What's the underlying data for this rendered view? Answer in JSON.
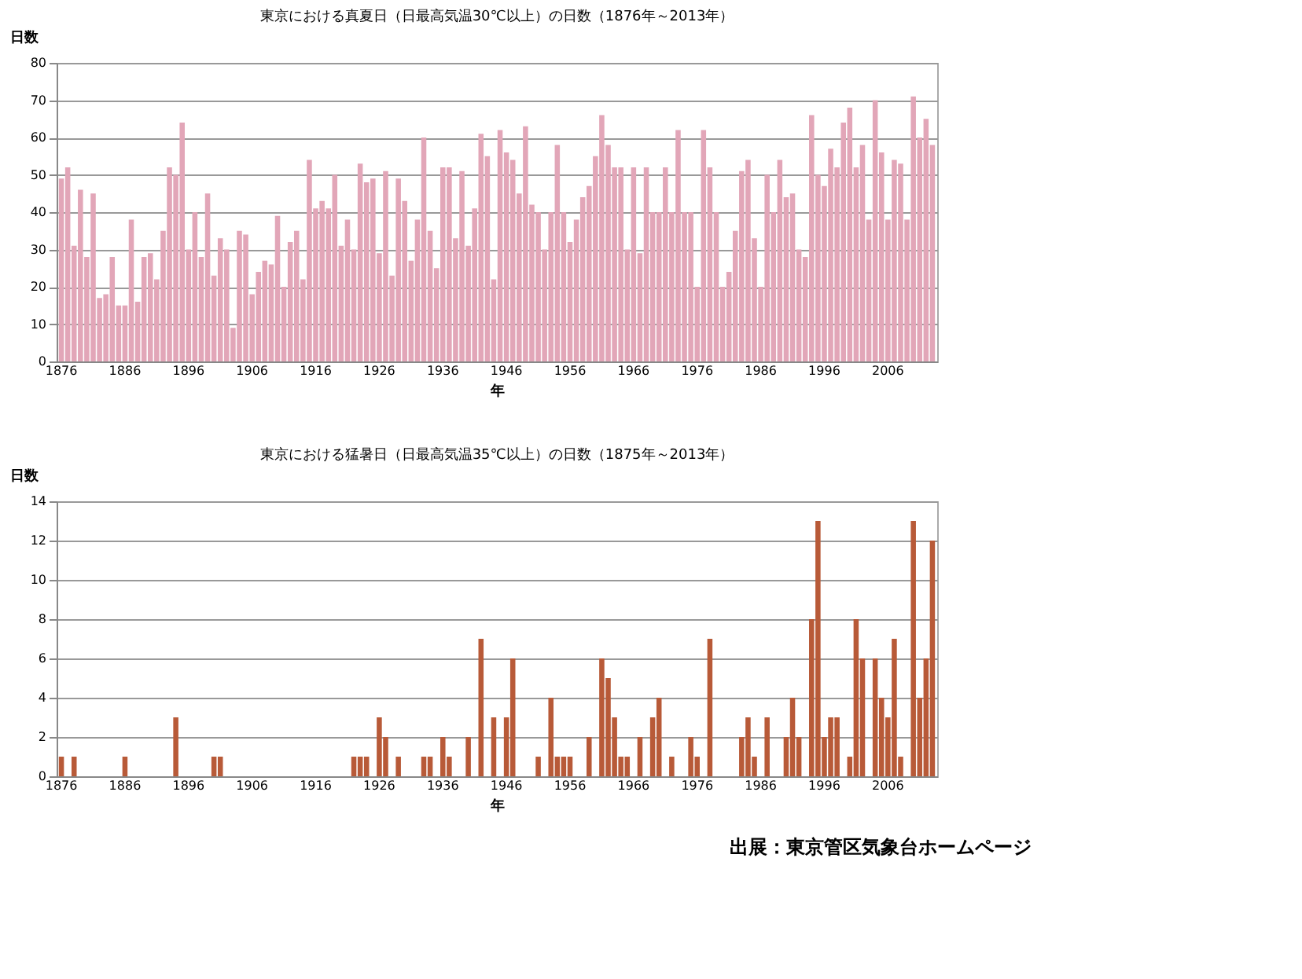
{
  "chart_data": [
    {
      "type": "bar",
      "title": "東京における真夏日（日最高気温30℃以上）の日数（1876年～2013年）",
      "ylabel": "日数",
      "xlabel": "年",
      "categories": [
        "1876",
        null,
        null,
        null,
        null,
        null,
        null,
        null,
        null,
        null,
        "1886",
        null,
        null,
        null,
        null,
        null,
        null,
        null,
        null,
        null,
        "1896",
        null,
        null,
        null,
        null,
        null,
        null,
        null,
        null,
        null,
        "1906",
        null,
        null,
        null,
        null,
        null,
        null,
        null,
        null,
        null,
        "1916",
        null,
        null,
        null,
        null,
        null,
        null,
        null,
        null,
        null,
        "1926",
        null,
        null,
        null,
        null,
        null,
        null,
        null,
        null,
        null,
        "1936",
        null,
        null,
        null,
        null,
        null,
        null,
        null,
        null,
        null,
        "1946",
        null,
        null,
        null,
        null,
        null,
        null,
        null,
        null,
        null,
        "1956",
        null,
        null,
        null,
        null,
        null,
        null,
        null,
        null,
        null,
        "1966",
        null,
        null,
        null,
        null,
        null,
        null,
        null,
        null,
        null,
        "1976",
        null,
        null,
        null,
        null,
        null,
        null,
        null,
        null,
        null,
        "1986",
        null,
        null,
        null,
        null,
        null,
        null,
        null,
        null,
        null,
        "1996",
        null,
        null,
        null,
        null,
        null,
        null,
        null,
        null,
        null,
        "2006",
        null,
        null,
        null,
        null,
        null,
        null,
        null
      ],
      "series": [
        {
          "color": "#e2a6b8",
          "values": [
            49,
            52,
            31,
            46,
            28,
            45,
            17,
            18,
            28,
            15,
            15,
            38,
            16,
            28,
            29,
            22,
            35,
            52,
            50,
            64,
            30,
            40,
            28,
            45,
            23,
            33,
            30,
            9,
            35,
            34,
            18,
            24,
            27,
            26,
            39,
            20,
            32,
            35,
            22,
            54,
            41,
            43,
            41,
            50,
            31,
            38,
            30,
            53,
            48,
            49,
            29,
            51,
            23,
            49,
            43,
            27,
            38,
            60,
            35,
            25,
            52,
            52,
            33,
            51,
            31,
            41,
            61,
            55,
            22,
            62,
            56,
            54,
            45,
            63,
            42,
            40,
            30,
            40,
            58,
            40,
            32,
            38,
            44,
            47,
            55,
            66,
            58,
            52,
            52,
            30,
            52,
            29,
            52,
            40,
            40,
            52,
            40,
            62,
            40,
            40,
            20,
            62,
            52,
            40,
            20,
            24,
            35,
            51,
            54,
            33,
            20,
            50,
            40,
            54,
            44,
            45,
            30,
            28,
            66,
            50,
            47,
            57,
            52,
            64,
            68,
            52,
            58,
            38,
            70,
            56,
            38,
            54,
            53,
            38,
            71,
            60,
            65,
            58
          ]
        }
      ],
      "ylim": [
        0,
        80
      ],
      "yticks": [
        0,
        10,
        20,
        30,
        40,
        50,
        60,
        70,
        80
      ],
      "grid": "y"
    },
    {
      "type": "bar",
      "title": "東京における猛暑日（日最高気温35℃以上）の日数（1875年～2013年）",
      "ylabel": "日数",
      "xlabel": "年",
      "categories": [
        "1876",
        null,
        null,
        null,
        null,
        null,
        null,
        null,
        null,
        null,
        "1886",
        null,
        null,
        null,
        null,
        null,
        null,
        null,
        null,
        null,
        "1896",
        null,
        null,
        null,
        null,
        null,
        null,
        null,
        null,
        null,
        "1906",
        null,
        null,
        null,
        null,
        null,
        null,
        null,
        null,
        null,
        "1916",
        null,
        null,
        null,
        null,
        null,
        null,
        null,
        null,
        null,
        "1926",
        null,
        null,
        null,
        null,
        null,
        null,
        null,
        null,
        null,
        "1936",
        null,
        null,
        null,
        null,
        null,
        null,
        null,
        null,
        null,
        "1946",
        null,
        null,
        null,
        null,
        null,
        null,
        null,
        null,
        null,
        "1956",
        null,
        null,
        null,
        null,
        null,
        null,
        null,
        null,
        null,
        "1966",
        null,
        null,
        null,
        null,
        null,
        null,
        null,
        null,
        null,
        "1976",
        null,
        null,
        null,
        null,
        null,
        null,
        null,
        null,
        null,
        "1986",
        null,
        null,
        null,
        null,
        null,
        null,
        null,
        null,
        null,
        "1996",
        null,
        null,
        null,
        null,
        null,
        null,
        null,
        null,
        null,
        "2006",
        null,
        null,
        null,
        null,
        null,
        null,
        null
      ],
      "series": [
        {
          "color": "#b85a38",
          "values": [
            1,
            0,
            1,
            0,
            0,
            0,
            0,
            0,
            0,
            0,
            1,
            0,
            0,
            0,
            0,
            0,
            0,
            0,
            3,
            0,
            0,
            0,
            0,
            0,
            1,
            1,
            0,
            0,
            0,
            0,
            0,
            0,
            0,
            0,
            0,
            0,
            0,
            0,
            0,
            0,
            0,
            0,
            0,
            0,
            0,
            0,
            1,
            1,
            1,
            0,
            3,
            2,
            0,
            1,
            0,
            0,
            0,
            1,
            1,
            0,
            2,
            1,
            0,
            0,
            2,
            0,
            7,
            0,
            3,
            0,
            3,
            6,
            0,
            0,
            0,
            1,
            0,
            4,
            1,
            1,
            1,
            0,
            0,
            2,
            0,
            6,
            5,
            3,
            1,
            1,
            0,
            2,
            0,
            3,
            4,
            0,
            1,
            0,
            0,
            2,
            1,
            0,
            7,
            0,
            0,
            0,
            0,
            2,
            3,
            1,
            0,
            3,
            0,
            0,
            2,
            4,
            2,
            0,
            8,
            13,
            2,
            3,
            3,
            0,
            1,
            8,
            6,
            0,
            6,
            4,
            3,
            7,
            1,
            0,
            13,
            4,
            6,
            12
          ]
        }
      ],
      "ylim": [
        0,
        14
      ],
      "yticks": [
        0,
        2,
        4,
        6,
        8,
        10,
        12,
        14
      ],
      "grid": "y",
      "annotations": [
        "出展：東京管区気象台ホームページ"
      ]
    }
  ]
}
